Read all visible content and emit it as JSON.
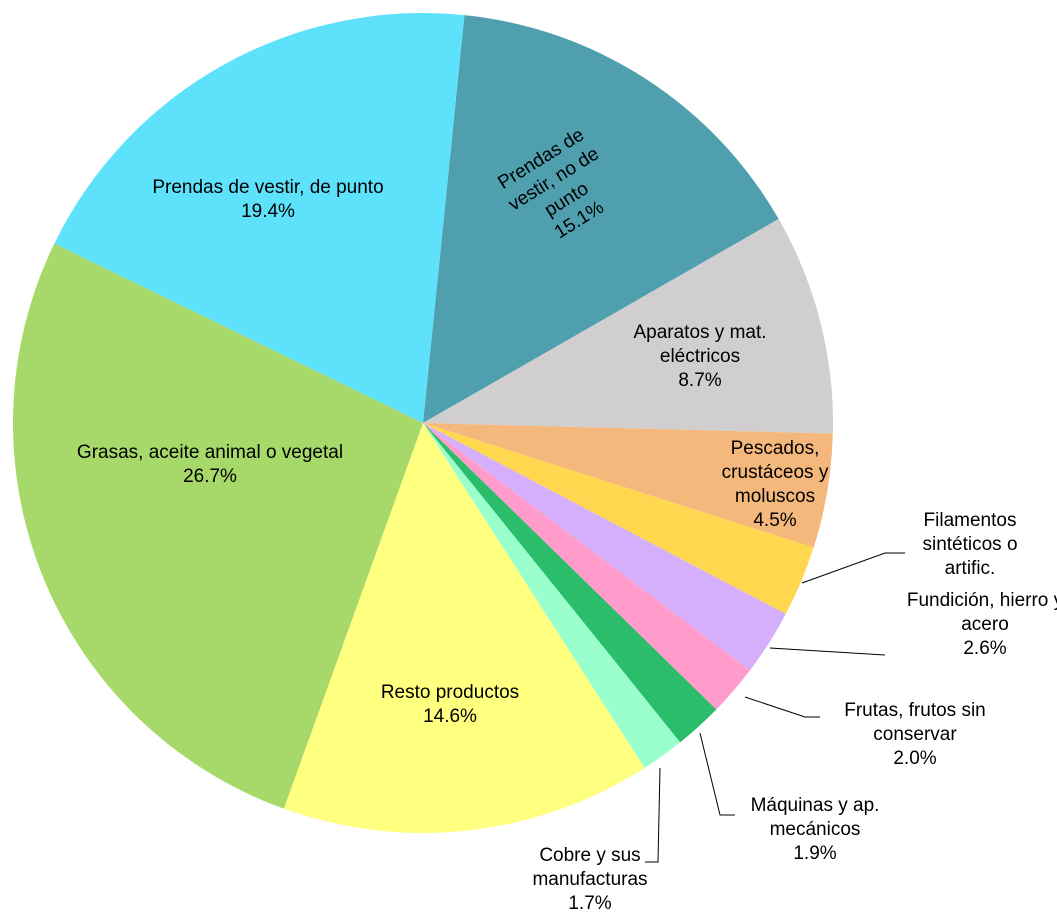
{
  "chart_data": {
    "type": "pie",
    "categories": [
      "Prendas de vestir, no de punto",
      "Aparatos y mat. eléctricos",
      "Pescados, crustáceos y moluscos",
      "Filamentos sintéticos o artific.",
      "Fundición, hierro y acero",
      "Frutas, frutos sin conservar",
      "Máquinas y ap. mecánicos",
      "Cobre y sus manufacturas",
      "Resto productos",
      "Grasas, aceite animal o vegetal",
      "Prendas de vestir, de punto"
    ],
    "values": [
      15.1,
      8.7,
      4.5,
      2.8,
      2.6,
      2.0,
      1.9,
      1.7,
      14.6,
      26.7,
      19.4
    ],
    "value_labels": [
      "15.1%",
      "8.7%",
      "4.5%",
      null,
      "2.6%",
      "2.0%",
      "1.9%",
      "1.7%",
      "14.6%",
      "26.7%",
      "19.4%"
    ],
    "colors": [
      "#4f9fae",
      "#d0cece",
      "#f4b87c",
      "#ffd84f",
      "#d5aefc",
      "#ff9ccc",
      "#2bbd6a",
      "#99ffcc",
      "#ffff80",
      "#a6d96a",
      "#5ee2fb"
    ]
  }
}
